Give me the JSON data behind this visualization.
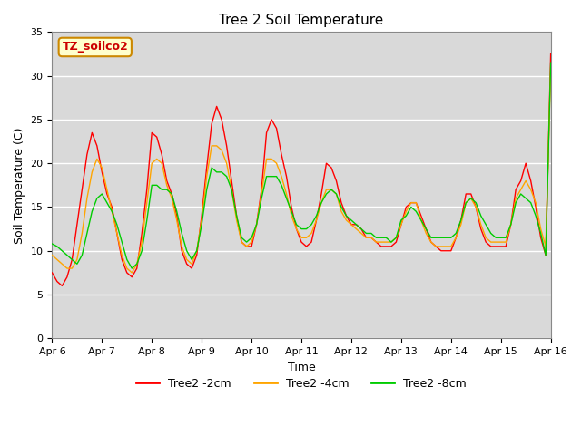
{
  "title": "Tree 2 Soil Temperature",
  "xlabel": "Time",
  "ylabel": "Soil Temperature (C)",
  "ylim": [
    0,
    35
  ],
  "xlim_days": [
    6,
    16
  ],
  "annotation": "TZ_soilco2",
  "legend_entries": [
    "Tree2 -2cm",
    "Tree2 -4cm",
    "Tree2 -8cm"
  ],
  "line_colors": [
    "#ff0000",
    "#ffa500",
    "#00cc00"
  ],
  "background_color": "#d9d9d9",
  "grid_color": "#ffffff",
  "x_ticks": [
    6,
    7,
    8,
    9,
    10,
    11,
    12,
    13,
    14,
    15,
    16
  ],
  "x_tick_labels": [
    "Apr 6",
    "Apr 7",
    "Apr 8",
    "Apr 9",
    "Apr 10",
    "Apr 11",
    "Apr 12",
    "Apr 13",
    "Apr 14",
    "Apr 15",
    "Apr 16"
  ],
  "y_ticks": [
    0,
    5,
    10,
    15,
    20,
    25,
    30,
    35
  ],
  "shaded_band": [
    5,
    30
  ],
  "series_2cm": {
    "x": [
      6.0,
      6.1,
      6.2,
      6.3,
      6.4,
      6.5,
      6.6,
      6.7,
      6.8,
      6.9,
      7.0,
      7.1,
      7.2,
      7.3,
      7.4,
      7.5,
      7.6,
      7.7,
      7.8,
      7.9,
      8.0,
      8.1,
      8.2,
      8.3,
      8.4,
      8.5,
      8.6,
      8.7,
      8.8,
      8.9,
      9.0,
      9.1,
      9.2,
      9.3,
      9.4,
      9.5,
      9.6,
      9.7,
      9.8,
      9.9,
      10.0,
      10.1,
      10.2,
      10.3,
      10.4,
      10.5,
      10.6,
      10.7,
      10.8,
      10.9,
      11.0,
      11.1,
      11.2,
      11.3,
      11.4,
      11.5,
      11.6,
      11.7,
      11.8,
      11.9,
      12.0,
      12.1,
      12.2,
      12.3,
      12.4,
      12.5,
      12.6,
      12.7,
      12.8,
      12.9,
      13.0,
      13.1,
      13.2,
      13.3,
      13.4,
      13.5,
      13.6,
      13.7,
      13.8,
      13.9,
      14.0,
      14.1,
      14.2,
      14.3,
      14.4,
      14.5,
      14.6,
      14.7,
      14.8,
      14.9,
      15.0,
      15.1,
      15.2,
      15.3,
      15.4,
      15.5,
      15.6,
      15.7,
      15.8,
      15.9,
      16.0
    ],
    "y": [
      7.5,
      6.5,
      6.0,
      7.0,
      9.0,
      13.0,
      17.0,
      21.0,
      23.5,
      22.0,
      19.0,
      16.5,
      15.0,
      12.0,
      9.0,
      7.5,
      7.0,
      8.0,
      12.0,
      17.0,
      23.5,
      23.0,
      21.0,
      18.0,
      16.5,
      14.0,
      10.0,
      8.5,
      8.0,
      9.5,
      14.0,
      19.5,
      24.5,
      26.5,
      25.0,
      22.0,
      18.0,
      14.0,
      11.0,
      10.5,
      10.5,
      13.0,
      17.0,
      23.5,
      25.0,
      24.0,
      21.0,
      18.5,
      15.0,
      12.5,
      11.0,
      10.5,
      11.0,
      13.5,
      16.5,
      20.0,
      19.5,
      18.0,
      15.5,
      14.0,
      13.0,
      13.0,
      12.5,
      11.5,
      11.5,
      11.0,
      10.5,
      10.5,
      10.5,
      11.0,
      13.0,
      15.0,
      15.5,
      15.5,
      14.0,
      12.5,
      11.0,
      10.5,
      10.0,
      10.0,
      10.0,
      11.5,
      13.5,
      16.5,
      16.5,
      15.0,
      12.5,
      11.0,
      10.5,
      10.5,
      10.5,
      10.5,
      13.0,
      17.0,
      18.0,
      20.0,
      18.0,
      15.0,
      11.5,
      9.5,
      32.5
    ]
  },
  "series_4cm": {
    "x": [
      6.0,
      6.1,
      6.2,
      6.3,
      6.4,
      6.5,
      6.6,
      6.7,
      6.8,
      6.9,
      7.0,
      7.1,
      7.2,
      7.3,
      7.4,
      7.5,
      7.6,
      7.7,
      7.8,
      7.9,
      8.0,
      8.1,
      8.2,
      8.3,
      8.4,
      8.5,
      8.6,
      8.7,
      8.8,
      8.9,
      9.0,
      9.1,
      9.2,
      9.3,
      9.4,
      9.5,
      9.6,
      9.7,
      9.8,
      9.9,
      10.0,
      10.1,
      10.2,
      10.3,
      10.4,
      10.5,
      10.6,
      10.7,
      10.8,
      10.9,
      11.0,
      11.1,
      11.2,
      11.3,
      11.4,
      11.5,
      11.6,
      11.7,
      11.8,
      11.9,
      12.0,
      12.1,
      12.2,
      12.3,
      12.4,
      12.5,
      12.6,
      12.7,
      12.8,
      12.9,
      13.0,
      13.1,
      13.2,
      13.3,
      13.4,
      13.5,
      13.6,
      13.7,
      13.8,
      13.9,
      14.0,
      14.1,
      14.2,
      14.3,
      14.4,
      14.5,
      14.6,
      14.7,
      14.8,
      14.9,
      15.0,
      15.1,
      15.2,
      15.3,
      15.4,
      15.5,
      15.6,
      15.7,
      15.8,
      15.9,
      16.0
    ],
    "y": [
      9.5,
      9.0,
      8.5,
      8.0,
      8.0,
      9.0,
      12.0,
      16.0,
      19.0,
      20.5,
      19.5,
      17.0,
      14.5,
      12.0,
      9.5,
      8.0,
      7.5,
      8.5,
      11.0,
      15.5,
      20.0,
      20.5,
      20.0,
      17.5,
      16.0,
      13.5,
      10.5,
      9.0,
      8.5,
      10.0,
      13.5,
      18.5,
      22.0,
      22.0,
      21.5,
      20.0,
      17.0,
      13.5,
      11.0,
      10.5,
      11.0,
      13.0,
      16.5,
      20.5,
      20.5,
      20.0,
      18.5,
      16.5,
      14.0,
      12.5,
      11.5,
      11.5,
      12.0,
      13.5,
      15.5,
      17.0,
      17.0,
      16.5,
      14.5,
      13.5,
      13.0,
      12.5,
      12.0,
      11.5,
      11.5,
      11.0,
      11.0,
      11.0,
      11.0,
      11.5,
      13.0,
      14.5,
      15.5,
      15.5,
      13.5,
      12.0,
      11.0,
      10.5,
      10.5,
      10.5,
      10.5,
      11.5,
      13.0,
      15.5,
      16.0,
      15.0,
      13.0,
      11.5,
      11.0,
      11.0,
      11.0,
      11.0,
      13.0,
      16.0,
      17.0,
      18.0,
      17.0,
      15.5,
      12.5,
      10.5,
      31.0
    ]
  },
  "series_8cm": {
    "x": [
      6.0,
      6.1,
      6.2,
      6.3,
      6.4,
      6.5,
      6.6,
      6.7,
      6.8,
      6.9,
      7.0,
      7.1,
      7.2,
      7.3,
      7.4,
      7.5,
      7.6,
      7.7,
      7.8,
      7.9,
      8.0,
      8.1,
      8.2,
      8.3,
      8.4,
      8.5,
      8.6,
      8.7,
      8.8,
      8.9,
      9.0,
      9.1,
      9.2,
      9.3,
      9.4,
      9.5,
      9.6,
      9.7,
      9.8,
      9.9,
      10.0,
      10.1,
      10.2,
      10.3,
      10.4,
      10.5,
      10.6,
      10.7,
      10.8,
      10.9,
      11.0,
      11.1,
      11.2,
      11.3,
      11.4,
      11.5,
      11.6,
      11.7,
      11.8,
      11.9,
      12.0,
      12.1,
      12.2,
      12.3,
      12.4,
      12.5,
      12.6,
      12.7,
      12.8,
      12.9,
      13.0,
      13.1,
      13.2,
      13.3,
      13.4,
      13.5,
      13.6,
      13.7,
      13.8,
      13.9,
      14.0,
      14.1,
      14.2,
      14.3,
      14.4,
      14.5,
      14.6,
      14.7,
      14.8,
      14.9,
      15.0,
      15.1,
      15.2,
      15.3,
      15.4,
      15.5,
      15.6,
      15.7,
      15.8,
      15.9,
      16.0
    ],
    "y": [
      10.8,
      10.5,
      10.0,
      9.5,
      9.0,
      8.5,
      9.5,
      12.0,
      14.5,
      16.0,
      16.5,
      15.5,
      14.5,
      13.0,
      11.0,
      9.0,
      8.0,
      8.5,
      10.0,
      13.5,
      17.5,
      17.5,
      17.0,
      17.0,
      16.5,
      14.5,
      12.0,
      10.0,
      9.0,
      10.0,
      13.0,
      17.0,
      19.5,
      19.0,
      19.0,
      18.5,
      17.0,
      14.0,
      11.5,
      11.0,
      11.5,
      13.0,
      16.0,
      18.5,
      18.5,
      18.5,
      17.5,
      16.0,
      14.5,
      13.0,
      12.5,
      12.5,
      13.0,
      14.0,
      15.5,
      16.5,
      17.0,
      16.5,
      15.0,
      14.0,
      13.5,
      13.0,
      12.5,
      12.0,
      12.0,
      11.5,
      11.5,
      11.5,
      11.0,
      11.5,
      13.5,
      14.0,
      15.0,
      14.5,
      13.5,
      12.5,
      11.5,
      11.5,
      11.5,
      11.5,
      11.5,
      12.0,
      13.5,
      15.5,
      16.0,
      15.5,
      14.0,
      13.0,
      12.0,
      11.5,
      11.5,
      11.5,
      13.0,
      15.5,
      16.5,
      16.0,
      15.5,
      14.0,
      12.0,
      9.5,
      31.5
    ]
  }
}
